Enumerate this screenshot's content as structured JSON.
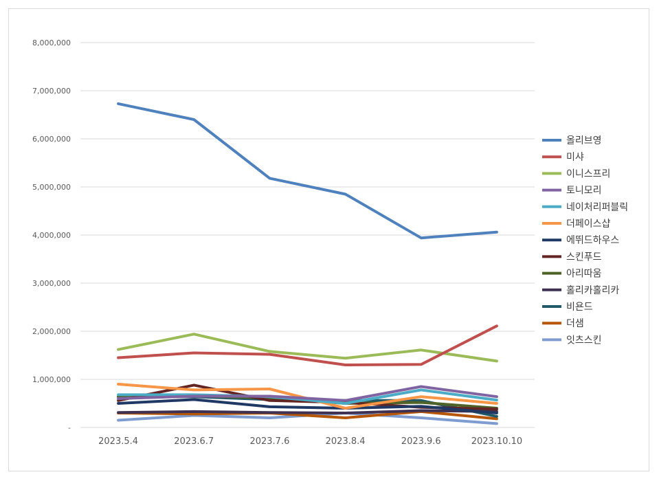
{
  "chart_data": {
    "type": "line",
    "categories": [
      "2023.5.4",
      "2023.6.7",
      "2023.7.6",
      "2023.8.4",
      "2023.9.6",
      "2023.10.10"
    ],
    "ylim": [
      0,
      8000000
    ],
    "yticks": [
      {
        "value": 0,
        "label": "-"
      },
      {
        "value": 1000000,
        "label": "1,000,000"
      },
      {
        "value": 2000000,
        "label": "2,000,000"
      },
      {
        "value": 3000000,
        "label": "3,000,000"
      },
      {
        "value": 4000000,
        "label": "4,000,000"
      },
      {
        "value": 5000000,
        "label": "5,000,000"
      },
      {
        "value": 6000000,
        "label": "6,000,000"
      },
      {
        "value": 7000000,
        "label": "7,000,000"
      },
      {
        "value": 8000000,
        "label": "8,000,000"
      }
    ],
    "grid": true,
    "legend_position": "right",
    "series": [
      {
        "name": "올리브영",
        "color": "#4f81bd",
        "values": [
          6730000,
          6400000,
          5180000,
          4850000,
          3940000,
          4060000
        ]
      },
      {
        "name": "미샤",
        "color": "#c0504d",
        "values": [
          1450000,
          1550000,
          1520000,
          1300000,
          1310000,
          2110000
        ]
      },
      {
        "name": "이니스프리",
        "color": "#9bbb59",
        "values": [
          1620000,
          1940000,
          1580000,
          1440000,
          1610000,
          1380000
        ]
      },
      {
        "name": "토니모리",
        "color": "#8064a2",
        "values": [
          600000,
          650000,
          650000,
          560000,
          850000,
          640000
        ]
      },
      {
        "name": "네이처리퍼블릭",
        "color": "#4bacc6",
        "values": [
          680000,
          680000,
          640000,
          500000,
          780000,
          570000
        ]
      },
      {
        "name": "더페이스샵",
        "color": "#f79646",
        "values": [
          900000,
          780000,
          800000,
          400000,
          640000,
          500000
        ]
      },
      {
        "name": "에뛰드하우스",
        "color": "#1f3864",
        "values": [
          500000,
          580000,
          430000,
          400000,
          440000,
          300000
        ]
      },
      {
        "name": "스킨푸드",
        "color": "#632523",
        "values": [
          560000,
          880000,
          560000,
          520000,
          420000,
          380000
        ]
      },
      {
        "name": "아리따움",
        "color": "#4f6228",
        "values": [
          640000,
          660000,
          610000,
          500000,
          520000,
          400000
        ]
      },
      {
        "name": "홀리카홀리카",
        "color": "#3f3151",
        "values": [
          310000,
          330000,
          310000,
          300000,
          350000,
          330000
        ]
      },
      {
        "name": "비욘드",
        "color": "#215967",
        "values": [
          640000,
          640000,
          580000,
          560000,
          560000,
          230000
        ]
      },
      {
        "name": "더샘",
        "color": "#b65708",
        "values": [
          300000,
          280000,
          300000,
          200000,
          330000,
          180000
        ]
      },
      {
        "name": "잇츠스킨",
        "color": "#7e9ccf",
        "values": [
          150000,
          250000,
          200000,
          300000,
          200000,
          80000
        ]
      }
    ]
  }
}
